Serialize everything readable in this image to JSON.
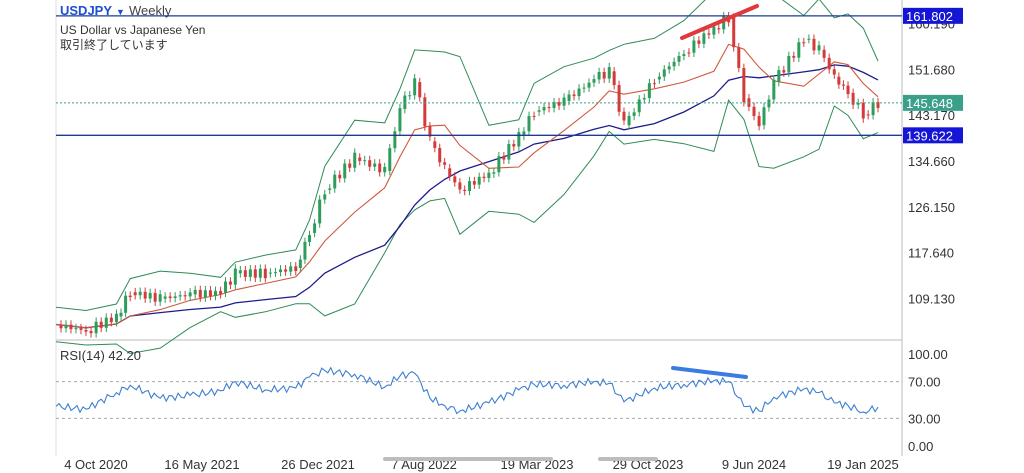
{
  "header": {
    "symbol": "USDJPY",
    "timeframe": "Weekly",
    "description": "US Dollar vs Japanese Yen",
    "status": "取引終了しています"
  },
  "colors": {
    "price_line": "#1f3a93",
    "level_box": "#1515d6",
    "current_box": "#3aa08a",
    "candle_up": "#2e9d5b",
    "candle_down": "#d33a3a",
    "bollinger": "#2f8b57",
    "ma_slow": "#1c1c8c",
    "ma_fast": "#d0593b",
    "rsi": "#3c7fd0",
    "annotation_price": "#e0383b",
    "annotation_rsi": "#3c7be0"
  },
  "chart_data": [
    {
      "type": "candlestick",
      "ylim": [
        102,
        164
      ],
      "y_ticks": [
        "160.190",
        "151.680",
        "143.170",
        "134.660",
        "126.150",
        "117.640",
        "109.130"
      ],
      "x_labels": [
        "4 Oct 2020",
        "16 May 2021",
        "26 Dec 2021",
        "7 Aug 2022",
        "19 Mar 2023",
        "29 Oct 2023",
        "9 Jun 2024",
        "19 Jan 2025"
      ],
      "levels": [
        {
          "label": "161.802",
          "value": 161.802
        },
        {
          "label": "139.622",
          "value": 139.622
        }
      ],
      "current_price": {
        "label": "145.648",
        "value": 145.648
      },
      "close_series": [
        {
          "date": "2020-10",
          "value": 104.5
        },
        {
          "date": "2020-12",
          "value": 103.3
        },
        {
          "date": "2021-02",
          "value": 106.0
        },
        {
          "date": "2021-03",
          "value": 110.5
        },
        {
          "date": "2021-05",
          "value": 109.3
        },
        {
          "date": "2021-07",
          "value": 110.1
        },
        {
          "date": "2021-09",
          "value": 110.4
        },
        {
          "date": "2021-10",
          "value": 114.0
        },
        {
          "date": "2021-12",
          "value": 114.0
        },
        {
          "date": "2022-02",
          "value": 115.0
        },
        {
          "date": "2022-03",
          "value": 121.5
        },
        {
          "date": "2022-04",
          "value": 129.5
        },
        {
          "date": "2022-06",
          "value": 135.5
        },
        {
          "date": "2022-08",
          "value": 133.0
        },
        {
          "date": "2022-09",
          "value": 144.5
        },
        {
          "date": "2022-10",
          "value": 149.5
        },
        {
          "date": "2022-11",
          "value": 138.5
        },
        {
          "date": "2022-12",
          "value": 133.5
        },
        {
          "date": "2023-01",
          "value": 129.5
        },
        {
          "date": "2023-03",
          "value": 132.5
        },
        {
          "date": "2023-05",
          "value": 139.5
        },
        {
          "date": "2023-06",
          "value": 144.0
        },
        {
          "date": "2023-08",
          "value": 146.0
        },
        {
          "date": "2023-10",
          "value": 150.0
        },
        {
          "date": "2023-11",
          "value": 151.5
        },
        {
          "date": "2023-12",
          "value": 141.5
        },
        {
          "date": "2024-02",
          "value": 150.0
        },
        {
          "date": "2024-04",
          "value": 155.0
        },
        {
          "date": "2024-06",
          "value": 159.5
        },
        {
          "date": "2024-07",
          "value": 161.5
        },
        {
          "date": "2024-08",
          "value": 146.5
        },
        {
          "date": "2024-09",
          "value": 141.5
        },
        {
          "date": "2024-10",
          "value": 149.5
        },
        {
          "date": "2024-12",
          "value": 157.5
        },
        {
          "date": "2025-01",
          "value": 155.5
        },
        {
          "date": "2025-02",
          "value": 150.5
        },
        {
          "date": "2025-03",
          "value": 147.5
        },
        {
          "date": "2025-04",
          "value": 143.5
        },
        {
          "date": "2025-05",
          "value": 145.6
        }
      ]
    },
    {
      "type": "line",
      "title": "RSI(14)",
      "value_label": "42.20",
      "ylim": [
        0,
        100
      ],
      "y_ticks": [
        "100.00",
        "70.00",
        "30.00",
        "0.00"
      ],
      "series": [
        {
          "date": "2020-10",
          "value": 43
        },
        {
          "date": "2020-12",
          "value": 40
        },
        {
          "date": "2021-02",
          "value": 58
        },
        {
          "date": "2021-03",
          "value": 66
        },
        {
          "date": "2021-05",
          "value": 52
        },
        {
          "date": "2021-07",
          "value": 55
        },
        {
          "date": "2021-09",
          "value": 60
        },
        {
          "date": "2021-10",
          "value": 70
        },
        {
          "date": "2021-12",
          "value": 61
        },
        {
          "date": "2022-02",
          "value": 63
        },
        {
          "date": "2022-03",
          "value": 75
        },
        {
          "date": "2022-04",
          "value": 82
        },
        {
          "date": "2022-06",
          "value": 78
        },
        {
          "date": "2022-08",
          "value": 64
        },
        {
          "date": "2022-09",
          "value": 76
        },
        {
          "date": "2022-10",
          "value": 79
        },
        {
          "date": "2022-11",
          "value": 52
        },
        {
          "date": "2022-12",
          "value": 44
        },
        {
          "date": "2023-01",
          "value": 38
        },
        {
          "date": "2023-03",
          "value": 47
        },
        {
          "date": "2023-05",
          "value": 61
        },
        {
          "date": "2023-06",
          "value": 67
        },
        {
          "date": "2023-08",
          "value": 66
        },
        {
          "date": "2023-10",
          "value": 70
        },
        {
          "date": "2023-11",
          "value": 68
        },
        {
          "date": "2023-12",
          "value": 48
        },
        {
          "date": "2024-02",
          "value": 63
        },
        {
          "date": "2024-04",
          "value": 67
        },
        {
          "date": "2024-06",
          "value": 71
        },
        {
          "date": "2024-07",
          "value": 70
        },
        {
          "date": "2024-08",
          "value": 43
        },
        {
          "date": "2024-09",
          "value": 38
        },
        {
          "date": "2024-10",
          "value": 53
        },
        {
          "date": "2024-12",
          "value": 62
        },
        {
          "date": "2025-01",
          "value": 58
        },
        {
          "date": "2025-02",
          "value": 47
        },
        {
          "date": "2025-03",
          "value": 44
        },
        {
          "date": "2025-04",
          "value": 37
        },
        {
          "date": "2025-05",
          "value": 42.2
        }
      ]
    }
  ]
}
